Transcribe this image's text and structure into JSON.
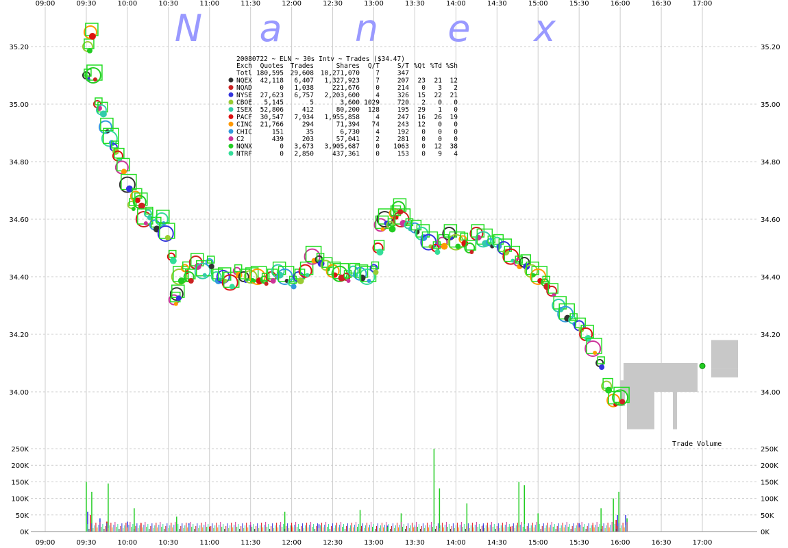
{
  "watermark": [
    "N",
    "a",
    "n",
    "e",
    "x"
  ],
  "colors": {
    "background": "#ffffff",
    "grid": "#cccccc",
    "watermark": "#9999ff",
    "volume_profile": "#c8c8c8",
    "last_trade_marker": "#22cc22"
  },
  "chart_data": [
    {
      "type": "scatter",
      "title": "20080722 ~ ELN ~ 30s Intv ~ Trades ($34.47)",
      "x_ticks": [
        "09:00",
        "09:30",
        "10:00",
        "10:30",
        "11:00",
        "11:30",
        "12:00",
        "12:30",
        "13:00",
        "13:30",
        "14:00",
        "14:30",
        "15:00",
        "15:30",
        "16:00",
        "16:30",
        "17:00"
      ],
      "y_ticks": [
        "35.20",
        "35.00",
        "34.80",
        "34.60",
        "34.40",
        "34.20",
        "34.00"
      ],
      "ylim": [
        33.83,
        35.32
      ],
      "grid": true,
      "price_path": [
        [
          "09:30",
          35.1
        ],
        [
          "09:31",
          35.2
        ],
        [
          "09:33",
          35.25
        ],
        [
          "09:35",
          35.1
        ],
        [
          "09:38",
          35.0
        ],
        [
          "09:41",
          34.98
        ],
        [
          "09:44",
          34.92
        ],
        [
          "09:47",
          34.88
        ],
        [
          "09:50",
          34.85
        ],
        [
          "09:53",
          34.82
        ],
        [
          "09:56",
          34.78
        ],
        [
          "10:00",
          34.72
        ],
        [
          "10:03",
          34.65
        ],
        [
          "10:06",
          34.68
        ],
        [
          "10:09",
          34.66
        ],
        [
          "10:12",
          34.6
        ],
        [
          "10:15",
          34.62
        ],
        [
          "10:20",
          34.58
        ],
        [
          "10:25",
          34.6
        ],
        [
          "10:28",
          34.55
        ],
        [
          "10:32",
          34.47
        ],
        [
          "10:34",
          34.32
        ],
        [
          "10:36",
          34.34
        ],
        [
          "10:38",
          34.4
        ],
        [
          "10:42",
          34.43
        ],
        [
          "10:45",
          34.4
        ],
        [
          "10:50",
          34.45
        ],
        [
          "10:55",
          34.42
        ],
        [
          "11:00",
          34.45
        ],
        [
          "11:05",
          34.4
        ],
        [
          "11:10",
          34.4
        ],
        [
          "11:15",
          34.38
        ],
        [
          "11:20",
          34.42
        ],
        [
          "11:25",
          34.4
        ],
        [
          "11:30",
          34.4
        ],
        [
          "11:35",
          34.4
        ],
        [
          "11:40",
          34.39
        ],
        [
          "11:45",
          34.4
        ],
        [
          "11:50",
          34.42
        ],
        [
          "11:55",
          34.4
        ],
        [
          "12:00",
          34.38
        ],
        [
          "12:05",
          34.4
        ],
        [
          "12:10",
          34.42
        ],
        [
          "12:15",
          34.47
        ],
        [
          "12:20",
          34.46
        ],
        [
          "12:25",
          34.44
        ],
        [
          "12:30",
          34.42
        ],
        [
          "12:35",
          34.41
        ],
        [
          "12:40",
          34.4
        ],
        [
          "12:45",
          34.42
        ],
        [
          "12:50",
          34.41
        ],
        [
          "12:55",
          34.4
        ],
        [
          "13:00",
          34.43
        ],
        [
          "13:03",
          34.5
        ],
        [
          "13:05",
          34.58
        ],
        [
          "13:08",
          34.6
        ],
        [
          "13:12",
          34.58
        ],
        [
          "13:15",
          34.62
        ],
        [
          "13:18",
          34.64
        ],
        [
          "13:20",
          34.6
        ],
        [
          "13:25",
          34.58
        ],
        [
          "13:30",
          34.57
        ],
        [
          "13:35",
          34.55
        ],
        [
          "13:40",
          34.52
        ],
        [
          "13:45",
          34.5
        ],
        [
          "13:50",
          34.52
        ],
        [
          "13:55",
          34.55
        ],
        [
          "14:00",
          34.52
        ],
        [
          "14:05",
          34.53
        ],
        [
          "14:10",
          34.5
        ],
        [
          "14:15",
          34.55
        ],
        [
          "14:20",
          34.53
        ],
        [
          "14:25",
          34.52
        ],
        [
          "14:30",
          34.52
        ],
        [
          "14:35",
          34.5
        ],
        [
          "14:40",
          34.47
        ],
        [
          "14:45",
          34.45
        ],
        [
          "14:50",
          34.45
        ],
        [
          "14:55",
          34.42
        ],
        [
          "15:00",
          34.4
        ],
        [
          "15:05",
          34.38
        ],
        [
          "15:10",
          34.35
        ],
        [
          "15:15",
          34.3
        ],
        [
          "15:20",
          34.27
        ],
        [
          "15:25",
          34.25
        ],
        [
          "15:30",
          34.23
        ],
        [
          "15:35",
          34.2
        ],
        [
          "15:40",
          34.15
        ],
        [
          "15:45",
          34.1
        ],
        [
          "15:50",
          34.02
        ],
        [
          "15:55",
          33.97
        ],
        [
          "16:00",
          33.98
        ]
      ],
      "last_trade": [
        "17:00",
        34.09
      ],
      "annotation": "Trade Volume",
      "stats_table": {
        "header": [
          "Exch",
          "Quotes",
          "Trades",
          "Shares",
          "Q/T",
          "S/T",
          "%Qt",
          "%Td",
          "%Sh"
        ],
        "rows": [
          {
            "exch": "Totl",
            "quotes": "180,595",
            "trades": "29,608",
            "shares": "10,271,070",
            "qt": "7",
            "st": "347",
            "pqt": "",
            "ptd": "",
            "psh": "",
            "color": ""
          },
          {
            "exch": "NQEX",
            "quotes": "42,118",
            "trades": "6,407",
            "shares": "1,327,923",
            "qt": "7",
            "st": "207",
            "pqt": "23",
            "ptd": "21",
            "psh": "12",
            "color": "#333333"
          },
          {
            "exch": "NQAD",
            "quotes": "0",
            "trades": "1,038",
            "shares": "221,676",
            "qt": "0",
            "st": "214",
            "pqt": "0",
            "ptd": "3",
            "psh": "2",
            "color": "#cc2222"
          },
          {
            "exch": "NYSE",
            "quotes": "27,623",
            "trades": "6,757",
            "shares": "2,203,600",
            "qt": "4",
            "st": "326",
            "pqt": "15",
            "ptd": "22",
            "psh": "21",
            "color": "#3333dd"
          },
          {
            "exch": "CBOE",
            "quotes": "5,145",
            "trades": "5",
            "shares": "3,600",
            "qt": "1029",
            "st": "720",
            "pqt": "2",
            "ptd": "0",
            "psh": "0",
            "color": "#99cc33"
          },
          {
            "exch": "ISEX",
            "quotes": "52,806",
            "trades": "412",
            "shares": "80,200",
            "qt": "128",
            "st": "195",
            "pqt": "29",
            "ptd": "1",
            "psh": "0",
            "color": "#33ccaa"
          },
          {
            "exch": "PACF",
            "quotes": "30,547",
            "trades": "7,934",
            "shares": "1,955,858",
            "qt": "4",
            "st": "247",
            "pqt": "16",
            "ptd": "26",
            "psh": "19",
            "color": "#dd1111"
          },
          {
            "exch": "CINC",
            "quotes": "21,766",
            "trades": "294",
            "shares": "71,394",
            "qt": "74",
            "st": "243",
            "pqt": "12",
            "ptd": "0",
            "psh": "0",
            "color": "#ff9900"
          },
          {
            "exch": "CHIC",
            "quotes": "151",
            "trades": "35",
            "shares": "6,730",
            "qt": "4",
            "st": "192",
            "pqt": "0",
            "ptd": "0",
            "psh": "0",
            "color": "#3399dd"
          },
          {
            "exch": "C2",
            "quotes": "439",
            "trades": "203",
            "shares": "57,041",
            "qt": "2",
            "st": "281",
            "pqt": "0",
            "ptd": "0",
            "psh": "0",
            "color": "#cc3399"
          },
          {
            "exch": "NQNX",
            "quotes": "0",
            "trades": "3,673",
            "shares": "3,905,687",
            "qt": "0",
            "st": "1063",
            "pqt": "0",
            "ptd": "12",
            "psh": "38",
            "color": "#22cc22"
          },
          {
            "exch": "NTRF",
            "quotes": "0",
            "trades": "2,850",
            "shares": "437,361",
            "qt": "0",
            "st": "153",
            "pqt": "0",
            "ptd": "9",
            "psh": "4",
            "color": "#33dd99"
          }
        ]
      }
    },
    {
      "type": "bar",
      "x_ticks": [
        "09:00",
        "09:30",
        "10:00",
        "10:30",
        "11:00",
        "11:30",
        "12:00",
        "12:30",
        "13:00",
        "13:30",
        "14:00",
        "14:30",
        "15:00",
        "15:30",
        "16:00",
        "16:30",
        "17:00"
      ],
      "y_ticks": [
        "250K",
        "200K",
        "150K",
        "100K",
        "50K",
        "0K"
      ],
      "ylim": [
        0,
        250000
      ],
      "series": [
        {
          "color": "#22cc22",
          "values": [
            [
              "09:30",
              150000
            ],
            [
              "09:34",
              120000
            ],
            [
              "09:46",
              145000
            ],
            [
              "10:05",
              70000
            ],
            [
              "10:36",
              45000
            ],
            [
              "11:55",
              60000
            ],
            [
              "12:50",
              65000
            ],
            [
              "13:20",
              55000
            ],
            [
              "13:44",
              250000
            ],
            [
              "13:48",
              130000
            ],
            [
              "14:08",
              85000
            ],
            [
              "14:46",
              150000
            ],
            [
              "14:50",
              140000
            ],
            [
              "15:00",
              55000
            ],
            [
              "15:46",
              70000
            ],
            [
              "15:55",
              100000
            ],
            [
              "15:59",
              120000
            ],
            [
              "16:05",
              40000
            ]
          ]
        },
        {
          "color": "#3333dd",
          "values": [
            [
              "09:31",
              60000
            ],
            [
              "09:40",
              40000
            ],
            [
              "10:00",
              30000
            ],
            [
              "10:45",
              25000
            ],
            [
              "11:30",
              20000
            ],
            [
              "12:20",
              22000
            ],
            [
              "13:10",
              18000
            ],
            [
              "14:20",
              20000
            ],
            [
              "15:30",
              25000
            ],
            [
              "15:58",
              50000
            ],
            [
              "16:04",
              50000
            ]
          ]
        },
        {
          "color": "#dd1111",
          "values": [
            [
              "09:33",
              50000
            ],
            [
              "09:45",
              30000
            ],
            [
              "10:10",
              25000
            ],
            [
              "11:00",
              15000
            ],
            [
              "12:00",
              18000
            ],
            [
              "13:30",
              15000
            ],
            [
              "14:40",
              15000
            ],
            [
              "15:40",
              20000
            ],
            [
              "15:57",
              35000
            ]
          ]
        }
      ]
    }
  ]
}
